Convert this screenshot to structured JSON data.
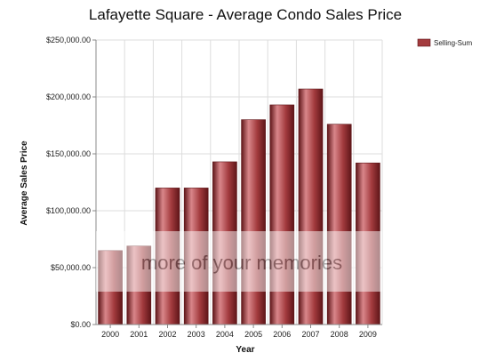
{
  "chart_data": {
    "type": "bar",
    "title": "Lafayette Square - Average Condo Sales Price",
    "xlabel": "Year",
    "ylabel": "Average Sales Price",
    "categories": [
      "2000",
      "2001",
      "2002",
      "2003",
      "2004",
      "2005",
      "2006",
      "2007",
      "2008",
      "2009"
    ],
    "series": [
      {
        "name": "Selling-Sum",
        "values": [
          65000,
          69000,
          120000,
          120000,
          143000,
          180000,
          193000,
          207000,
          176000,
          142000
        ]
      }
    ],
    "ylim": [
      0,
      250000
    ],
    "yticks": [
      "$0.00",
      "$50,000.00",
      "$100,000.00",
      "$150,000.00",
      "$200,000.00",
      "$250,000.00"
    ],
    "grid": true,
    "legend_position": "top-right",
    "colors": {
      "bar": "#a33b3e",
      "bar_light": "#d9868a",
      "bar_dark": "#5e1518",
      "grid": "#dddddd",
      "axis": "#888888"
    },
    "watermark": "more of your memories"
  }
}
